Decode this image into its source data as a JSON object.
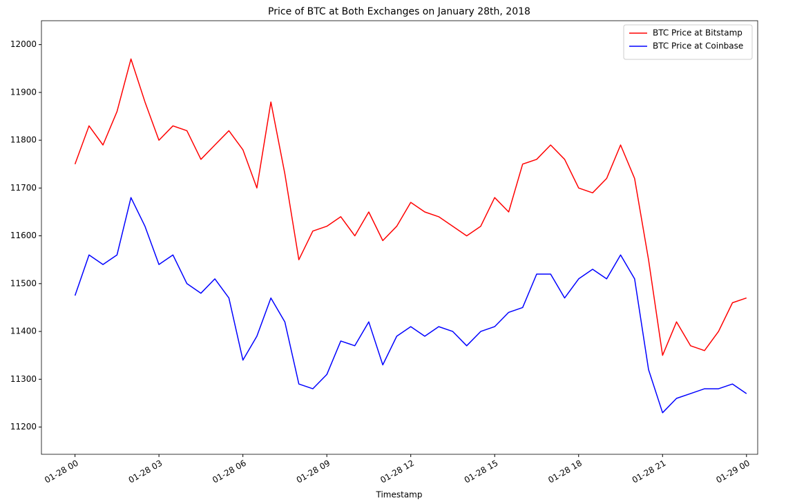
{
  "chart_data": {
    "type": "line",
    "title": "Price of BTC at Both Exchanges on January 28th, 2018",
    "x_label": "Timestamp",
    "x": [
      0,
      0.5,
      1,
      1.5,
      2,
      2.5,
      3,
      3.5,
      4,
      4.5,
      5,
      5.5,
      6,
      6.5,
      7,
      7.5,
      8,
      8.5,
      9,
      9.5,
      10,
      10.5,
      11,
      11.5,
      12,
      12.5,
      13,
      13.5,
      14,
      14.5,
      15,
      15.5,
      16,
      16.5,
      17,
      17.5,
      18,
      18.5,
      19,
      19.5,
      20,
      20.5,
      21,
      21.5,
      22,
      22.5,
      23,
      23.5,
      24
    ],
    "series": [
      {
        "name": "BTC Price at Bitstamp",
        "color": "#ff0000",
        "values": [
          11750,
          11830,
          11790,
          11860,
          11970,
          11880,
          11800,
          11830,
          11820,
          11760,
          11790,
          11820,
          11780,
          11700,
          11880,
          11730,
          11550,
          11610,
          11620,
          11640,
          11600,
          11650,
          11590,
          11620,
          11670,
          11650,
          11640,
          11620,
          11600,
          11620,
          11680,
          11650,
          11750,
          11760,
          11790,
          11760,
          11700,
          11690,
          11720,
          11790,
          11720,
          11550,
          11350,
          11420,
          11370,
          11360,
          11400,
          11460,
          11470
        ]
      },
      {
        "name": "BTC Price at Coinbase",
        "color": "#0000ff",
        "values": [
          11475,
          11560,
          11540,
          11560,
          11680,
          11620,
          11540,
          11560,
          11500,
          11480,
          11510,
          11470,
          11340,
          11390,
          11470,
          11420,
          11290,
          11280,
          11310,
          11380,
          11370,
          11420,
          11330,
          11390,
          11410,
          11390,
          11410,
          11400,
          11370,
          11400,
          11410,
          11440,
          11450,
          11520,
          11520,
          11470,
          11510,
          11530,
          11510,
          11560,
          11510,
          11320,
          11230,
          11260,
          11270,
          11280,
          11280,
          11290,
          11270
        ]
      }
    ],
    "xlim": [
      -1.2,
      24.4
    ],
    "xticks": [
      {
        "value": 0,
        "label": "01-28 00"
      },
      {
        "value": 3,
        "label": "01-28 03"
      },
      {
        "value": 6,
        "label": "01-28 06"
      },
      {
        "value": 9,
        "label": "01-28 09"
      },
      {
        "value": 12,
        "label": "01-28 12"
      },
      {
        "value": 15,
        "label": "01-28 15"
      },
      {
        "value": 18,
        "label": "01-28 18"
      },
      {
        "value": 21,
        "label": "01-28 21"
      },
      {
        "value": 24,
        "label": "01-29 00"
      }
    ],
    "ylim": [
      11143,
      12050
    ],
    "yticks": [
      11200,
      11300,
      11400,
      11500,
      11600,
      11700,
      11800,
      11900,
      12000
    ],
    "legend": "upper right",
    "grid": false
  }
}
